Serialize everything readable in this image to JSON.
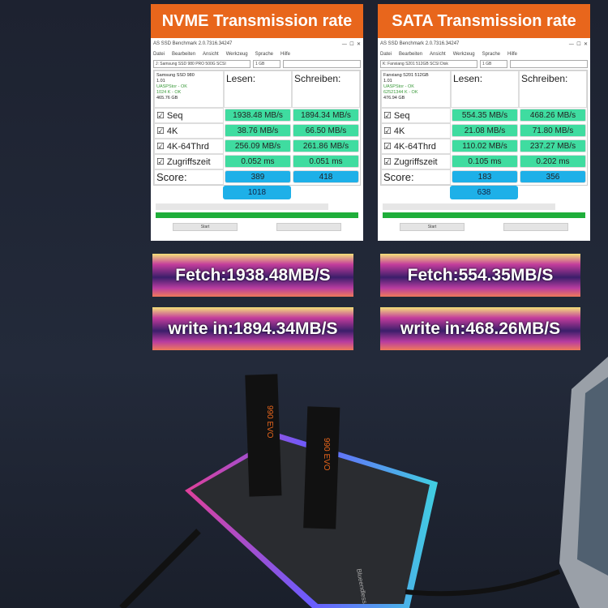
{
  "panels": [
    {
      "title": "NVME Transmission rate",
      "window_title": "AS SSD Benchmark 2.0.7316.34247",
      "menu": [
        "Datei",
        "Bearbeiten",
        "Ansicht",
        "Werkzeug",
        "Sprache",
        "Hilfe"
      ],
      "drive_select": "J: Samsung SSD 980 PRO 500G SCSI",
      "size_select": "1 GB",
      "info": [
        "Samsung SSD 980",
        "1.01",
        "UASPStor - OK",
        "1024 K - OK",
        "465.76 GB"
      ],
      "col_read": "Lesen:",
      "col_write": "Schreiben:",
      "rows": [
        {
          "label": "Seq",
          "read": "1938.48 MB/s",
          "write": "1894.34 MB/s"
        },
        {
          "label": "4K",
          "read": "38.76 MB/s",
          "write": "66.50 MB/s"
        },
        {
          "label": "4K-64Thrd",
          "read": "256.09 MB/s",
          "write": "261.86 MB/s"
        },
        {
          "label": "Zugriffszeit",
          "read": "0.052 ms",
          "write": "0.051 ms"
        }
      ],
      "score_label": "Score:",
      "score_read": "389",
      "score_write": "418",
      "score_total": "1018",
      "start": "Start"
    },
    {
      "title": "SATA Transmission rate",
      "window_title": "AS SSD Benchmark 2.0.7316.34247",
      "menu": [
        "Datei",
        "Bearbeiten",
        "Ansicht",
        "Werkzeug",
        "Sprache",
        "Hilfe"
      ],
      "drive_select": "K: Fanxiang S201 512GB SCSI Disk",
      "size_select": "1 GB",
      "info": [
        "Fanxiang S201 512GB",
        "1.01",
        "UASPStor - OK",
        "62521344 K - OK",
        "476.94 GB"
      ],
      "col_read": "Lesen:",
      "col_write": "Schreiben:",
      "rows": [
        {
          "label": "Seq",
          "read": "554.35 MB/s",
          "write": "468.26 MB/s"
        },
        {
          "label": "4K",
          "read": "21.08 MB/s",
          "write": "71.80 MB/s"
        },
        {
          "label": "4K-64Thrd",
          "read": "110.02 MB/s",
          "write": "237.27 MB/s"
        },
        {
          "label": "Zugriffszeit",
          "read": "0.105 ms",
          "write": "0.202 ms"
        }
      ],
      "score_label": "Score:",
      "score_read": "183",
      "score_write": "356",
      "score_total": "638",
      "start": "Start"
    }
  ],
  "banners": {
    "nvme_fetch": "Fetch:1938.48MB/S",
    "nvme_write": "write in:1894.34MB/S",
    "sata_fetch": "Fetch:554.35MB/S",
    "sata_write": "write in:468.26MB/S"
  },
  "product": {
    "brand": "Blueendless",
    "ssd_label": "990 EVO"
  }
}
